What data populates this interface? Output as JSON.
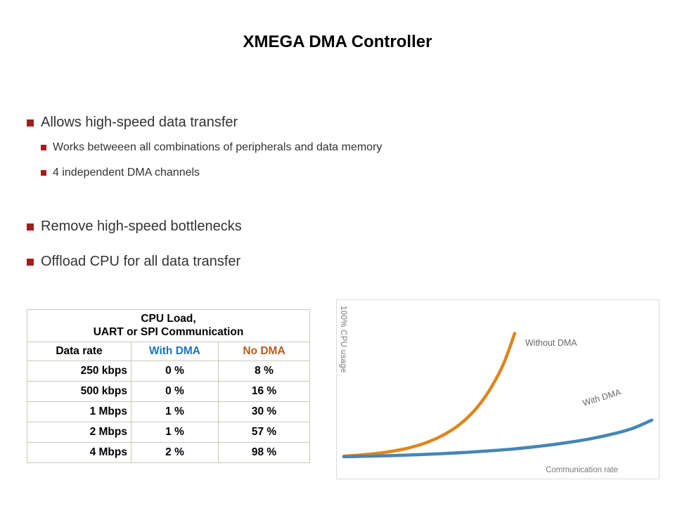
{
  "slide": {
    "title": "XMEGA DMA Controller"
  },
  "bullets": {
    "items": [
      {
        "level": 1,
        "text": "Allows high-speed data transfer"
      },
      {
        "level": 2,
        "text": "Works betweeen all combinations of peripherals and data memory"
      },
      {
        "level": 2,
        "text": "4 independent DMA channels"
      },
      {
        "level": 1,
        "text": "Remove high-speed bottlenecks"
      },
      {
        "level": 1,
        "text": "Offload CPU for all data transfer"
      }
    ]
  },
  "table": {
    "title_line1": "CPU Load,",
    "title_line2": "UART or SPI Communication",
    "columns": [
      {
        "label": "Data rate",
        "color": "#000000"
      },
      {
        "label": "With DMA",
        "color": "#1F74BE"
      },
      {
        "label": "No DMA",
        "color": "#BC5A1C"
      }
    ],
    "rows": [
      [
        "250 kbps",
        "0 %",
        "8 %"
      ],
      [
        "500 kbps",
        "0 %",
        "16 %"
      ],
      [
        "1 Mbps",
        "1 %",
        "30 %"
      ],
      [
        "2 Mbps",
        "1 %",
        "57 %"
      ],
      [
        "4 Mbps",
        "2 %",
        "98 %"
      ]
    ]
  },
  "chart_data": {
    "type": "line",
    "title": "",
    "xlabel": "Communication rate",
    "ylabel": "100% CPU usage",
    "xlim": [
      0,
      100
    ],
    "ylim": [
      0,
      100
    ],
    "grid": false,
    "legend_position": "inline-labels",
    "series": [
      {
        "name": "Without DMA",
        "color": "#DD861E",
        "x": [
          0,
          4,
          8,
          12,
          16,
          20,
          24,
          28,
          32,
          36,
          40,
          44,
          48,
          52,
          55.5
        ],
        "y": [
          1,
          1.6,
          2.4,
          3.4,
          4.8,
          6.6,
          9,
          12.2,
          16.5,
          22,
          29.5,
          39.5,
          53,
          71,
          93
        ]
      },
      {
        "name": "With DMA",
        "color": "#4586B4",
        "x": [
          0,
          8,
          16,
          24,
          32,
          40,
          48,
          56,
          64,
          72,
          80,
          88,
          94,
          100
        ],
        "y": [
          0.6,
          1,
          1.5,
          2.1,
          2.9,
          3.9,
          5.1,
          6.6,
          8.6,
          11,
          14,
          18,
          22,
          28
        ]
      }
    ]
  },
  "colors": {
    "bullet": "#A11E1E",
    "with_dma_text": "#1F74BE",
    "no_dma_text": "#BC5A1C"
  }
}
